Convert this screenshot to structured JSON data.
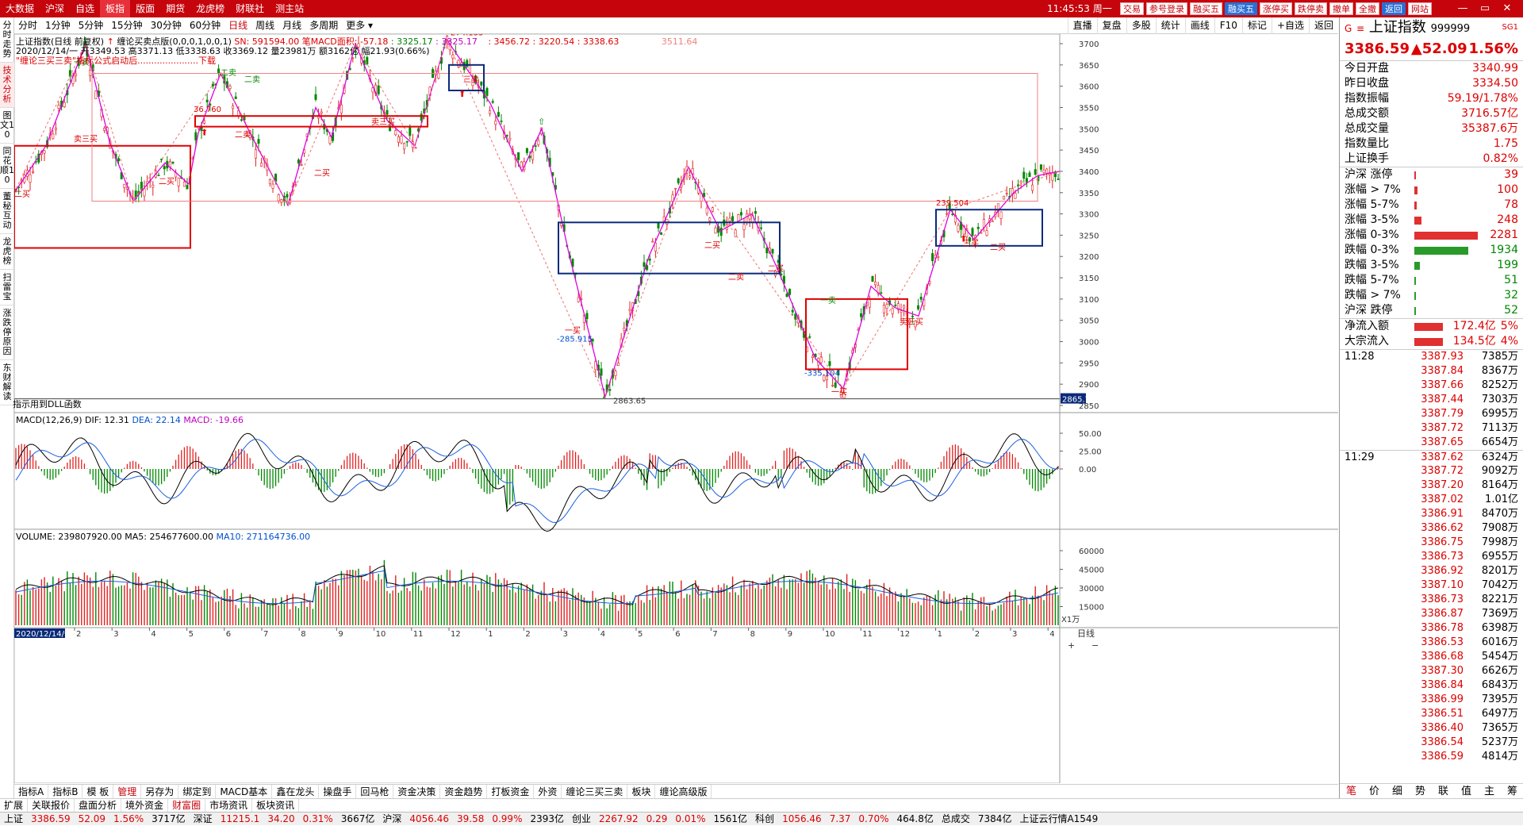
{
  "menu": [
    "大数据",
    "沪深",
    "自选",
    "板指",
    "版面",
    "期货",
    "龙虎榜",
    "财联社",
    "测主站"
  ],
  "menu_selected": 3,
  "clock": "11:45:53 周一",
  "top_buttons": [
    "交易",
    "参号登录",
    "融买五",
    "融买五",
    "涨停买",
    "跌停卖",
    "撤单",
    "全撤",
    "返回",
    "网站"
  ],
  "window_controls": [
    "—",
    "▭",
    "✕"
  ],
  "left_nav": [
    "分时走势",
    "技术分析",
    "图文10",
    "同花顺10",
    "董秘互动",
    "龙虎榜",
    "扫雷宝",
    "涨跌停原因",
    "东财解读"
  ],
  "left_nav_selected": 1,
  "periods": [
    "分时",
    "1分钟",
    "5分钟",
    "15分钟",
    "30分钟",
    "60分钟",
    "日线",
    "周线",
    "月线",
    "多周期",
    "更多 ▾"
  ],
  "period_selected": 6,
  "right_tools": [
    "直播",
    "复盘",
    "多股",
    "统计",
    "画线",
    "F10",
    "标记",
    "+自选",
    "返回"
  ],
  "chart_title": "上证指数(日线 前复权)",
  "indicator_name": "缠论买卖点版(0,0,0,1,0,0,1)",
  "indicator_sn": "SN: 591594.00",
  "indicator_macd_area": "笔MACD面积: -57.18",
  "indicator_vals1": ": 3325.17",
  "indicator_vals2": ": 3325.17",
  "indicator_vals3": ": 3456.72 : 3220.54 : 3338.63",
  "indicator_vals4": "3511.64",
  "ohlc_line": "2020/12/14/一 开3349.53 高3371.13 低3338.63 收3369.12 量23981万 额3162亿 幅21.93(0.66%)",
  "download_note": "\"缠论三买三卖\"指标公式启动后......................下载",
  "dll_note": "指示用到DLL函数",
  "macd_title": "MACD(12,26,9)",
  "macd_dif": "DIF: 12.31",
  "macd_dea": "DEA: 22.14",
  "macd_macd": "MACD: -19.66",
  "vol_title": "VOLUME: 239807920.00",
  "vol_ma5": "MA5: 254677600.00",
  "vol_ma10": "MA10: 271164736.00",
  "price_axis": [
    "3700",
    "3650",
    "3600",
    "3550",
    "3500",
    "3450",
    "3400",
    "3350",
    "3300",
    "3250",
    "3200",
    "3150",
    "3100",
    "3050",
    "3000",
    "2950",
    "2900",
    "2850"
  ],
  "last_price_tag": "2865.7",
  "macd_axis": [
    "50.00",
    "25.00",
    "0.00"
  ],
  "vol_axis": [
    "60000",
    "45000",
    "30000",
    "15000"
  ],
  "vol_unit": "X1万",
  "x_axis_date": "2020/12/14/一",
  "x_axis_months": [
    "2",
    "3",
    "4",
    "5",
    "6",
    "7",
    "8",
    "9",
    "10",
    "11",
    "12",
    "1",
    "2",
    "3",
    "4",
    "5",
    "6",
    "7",
    "8",
    "9",
    "10",
    "11",
    "12",
    "1",
    "2",
    "3",
    "4",
    "5"
  ],
  "x_axis_period": "日线",
  "chart_labels": {
    "high1": "274.135",
    "mark1": "36.760",
    "low1": "-285.915",
    "low2": "2863.65",
    "low3": "-335.104",
    "mark2": "239.504",
    "buy1": "一买",
    "buy2": "二买",
    "buy3": "三买",
    "sell1": "一卖",
    "sell2": "二卖",
    "sell3": "三卖",
    "sell3buy": "卖三买",
    "buy2b": "二买"
  },
  "quote": {
    "code_tag": "G",
    "name": "上证指数",
    "code": "999999",
    "suffix": "SG1",
    "price": "3386.59",
    "change": "▲52.09",
    "pct": "1.56%"
  },
  "stats": [
    {
      "k": "今日开盘",
      "v": "3340.99"
    },
    {
      "k": "昨日收盘",
      "v": "3334.50"
    },
    {
      "k": "指数振幅",
      "v": "59.19/1.78%"
    },
    {
      "k": "总成交额",
      "v": "3716.57亿"
    },
    {
      "k": "总成交量",
      "v": "35387.6万"
    },
    {
      "k": "指数量比",
      "v": "1.75"
    },
    {
      "k": "上证换手",
      "v": "0.82%"
    }
  ],
  "distribution": [
    {
      "k": "沪深 涨停",
      "n": "39",
      "frac": 0.02,
      "up": true
    },
    {
      "k": "涨幅 > 7%",
      "n": "100",
      "frac": 0.05,
      "up": true
    },
    {
      "k": "涨幅 5-7%",
      "n": "78",
      "frac": 0.04,
      "up": true
    },
    {
      "k": "涨幅 3-5%",
      "n": "248",
      "frac": 0.11,
      "up": true
    },
    {
      "k": "涨幅 0-3%",
      "n": "2281",
      "frac": 1.0,
      "up": true
    },
    {
      "k": "跌幅 0-3%",
      "n": "1934",
      "frac": 0.85,
      "up": false
    },
    {
      "k": "跌幅 3-5%",
      "n": "199",
      "frac": 0.09,
      "up": false
    },
    {
      "k": "跌幅 5-7%",
      "n": "51",
      "frac": 0.02,
      "up": false
    },
    {
      "k": "跌幅 > 7%",
      "n": "32",
      "frac": 0.015,
      "up": false
    },
    {
      "k": "沪深 跌停",
      "n": "52",
      "frac": 0.02,
      "up": false
    }
  ],
  "flows": [
    {
      "k": "净流入额",
      "v": "172.4亿",
      "pct": "5%"
    },
    {
      "k": "大宗流入",
      "v": "134.5亿",
      "pct": "4%"
    }
  ],
  "ticks": [
    {
      "t": "11:28",
      "p": "3387.93",
      "v": "7385万"
    },
    {
      "t": "",
      "p": "3387.84",
      "v": "8367万"
    },
    {
      "t": "",
      "p": "3387.66",
      "v": "8252万"
    },
    {
      "t": "",
      "p": "3387.44",
      "v": "7303万"
    },
    {
      "t": "",
      "p": "3387.79",
      "v": "6995万"
    },
    {
      "t": "",
      "p": "3387.72",
      "v": "7113万"
    },
    {
      "t": "",
      "p": "3387.65",
      "v": "6654万"
    },
    {
      "t": "11:29",
      "p": "3387.62",
      "v": "6324万"
    },
    {
      "t": "",
      "p": "3387.72",
      "v": "9092万"
    },
    {
      "t": "",
      "p": "3387.20",
      "v": "8164万"
    },
    {
      "t": "",
      "p": "3387.02",
      "v": "1.01亿"
    },
    {
      "t": "",
      "p": "3386.91",
      "v": "8470万"
    },
    {
      "t": "",
      "p": "3386.62",
      "v": "7908万"
    },
    {
      "t": "",
      "p": "3386.75",
      "v": "7998万"
    },
    {
      "t": "",
      "p": "3386.73",
      "v": "6955万"
    },
    {
      "t": "",
      "p": "3386.92",
      "v": "8201万"
    },
    {
      "t": "",
      "p": "3387.10",
      "v": "7042万"
    },
    {
      "t": "",
      "p": "3386.73",
      "v": "8221万"
    },
    {
      "t": "",
      "p": "3386.87",
      "v": "7369万"
    },
    {
      "t": "",
      "p": "3386.78",
      "v": "6398万"
    },
    {
      "t": "",
      "p": "3386.53",
      "v": "6016万"
    },
    {
      "t": "",
      "p": "3386.68",
      "v": "5454万"
    },
    {
      "t": "",
      "p": "3387.30",
      "v": "6626万"
    },
    {
      "t": "",
      "p": "3386.84",
      "v": "6843万"
    },
    {
      "t": "",
      "p": "3386.99",
      "v": "7395万"
    },
    {
      "t": "",
      "p": "3386.51",
      "v": "6497万"
    },
    {
      "t": "",
      "p": "3386.40",
      "v": "7365万"
    },
    {
      "t": "",
      "p": "3386.54",
      "v": "5237万"
    },
    {
      "t": "",
      "p": "3386.59",
      "v": "4814万"
    }
  ],
  "right_tabs": [
    "笔",
    "价",
    "细",
    "势",
    "联",
    "值",
    "主",
    "筹"
  ],
  "right_tab_selected": 0,
  "bottom_tabs1": [
    "指标A",
    "指标B",
    "模 板",
    "管理",
    "另存为",
    "绑定到",
    "MACD基本",
    "鑫在龙头",
    "操盘手",
    "回马枪",
    "资金决策",
    "资金趋势",
    "打板资金",
    "外资",
    "缠论三买三卖",
    "板块",
    "缠论高级版"
  ],
  "bottom_tabs1_selected": 3,
  "bottom_tabs2": [
    "扩展",
    "关联报价",
    "盘面分析",
    "境外资金",
    "财富圈",
    "市场资讯",
    "板块资讯"
  ],
  "bottom_tabs2_selected": 4,
  "status": [
    {
      "k": "上证",
      "v": "3386.59",
      "c": "52.09",
      "p": "1.56%",
      "a": "3717亿"
    },
    {
      "k": "深证",
      "v": "11215.1",
      "c": "34.20",
      "p": "0.31%",
      "a": "3667亿"
    },
    {
      "k": "沪深",
      "v": "4056.46",
      "c": "39.58",
      "p": "0.99%",
      "a": "2393亿"
    },
    {
      "k": "创业",
      "v": "2267.92",
      "c": "0.29",
      "p": "0.01%",
      "a": "1561亿"
    },
    {
      "k": "科创",
      "v": "1056.46",
      "c": "7.37",
      "p": "0.70%",
      "a": "464.8亿"
    }
  ],
  "status_total_label": "总成交",
  "status_total": "7384亿",
  "status_server": "上证云行情A1549",
  "colors": {
    "brand": "#c5040c",
    "up": "#e02020",
    "down": "#008800",
    "pen": "#e000e0",
    "box_blue": "#0a2a7a",
    "box_red": "#e00000"
  }
}
